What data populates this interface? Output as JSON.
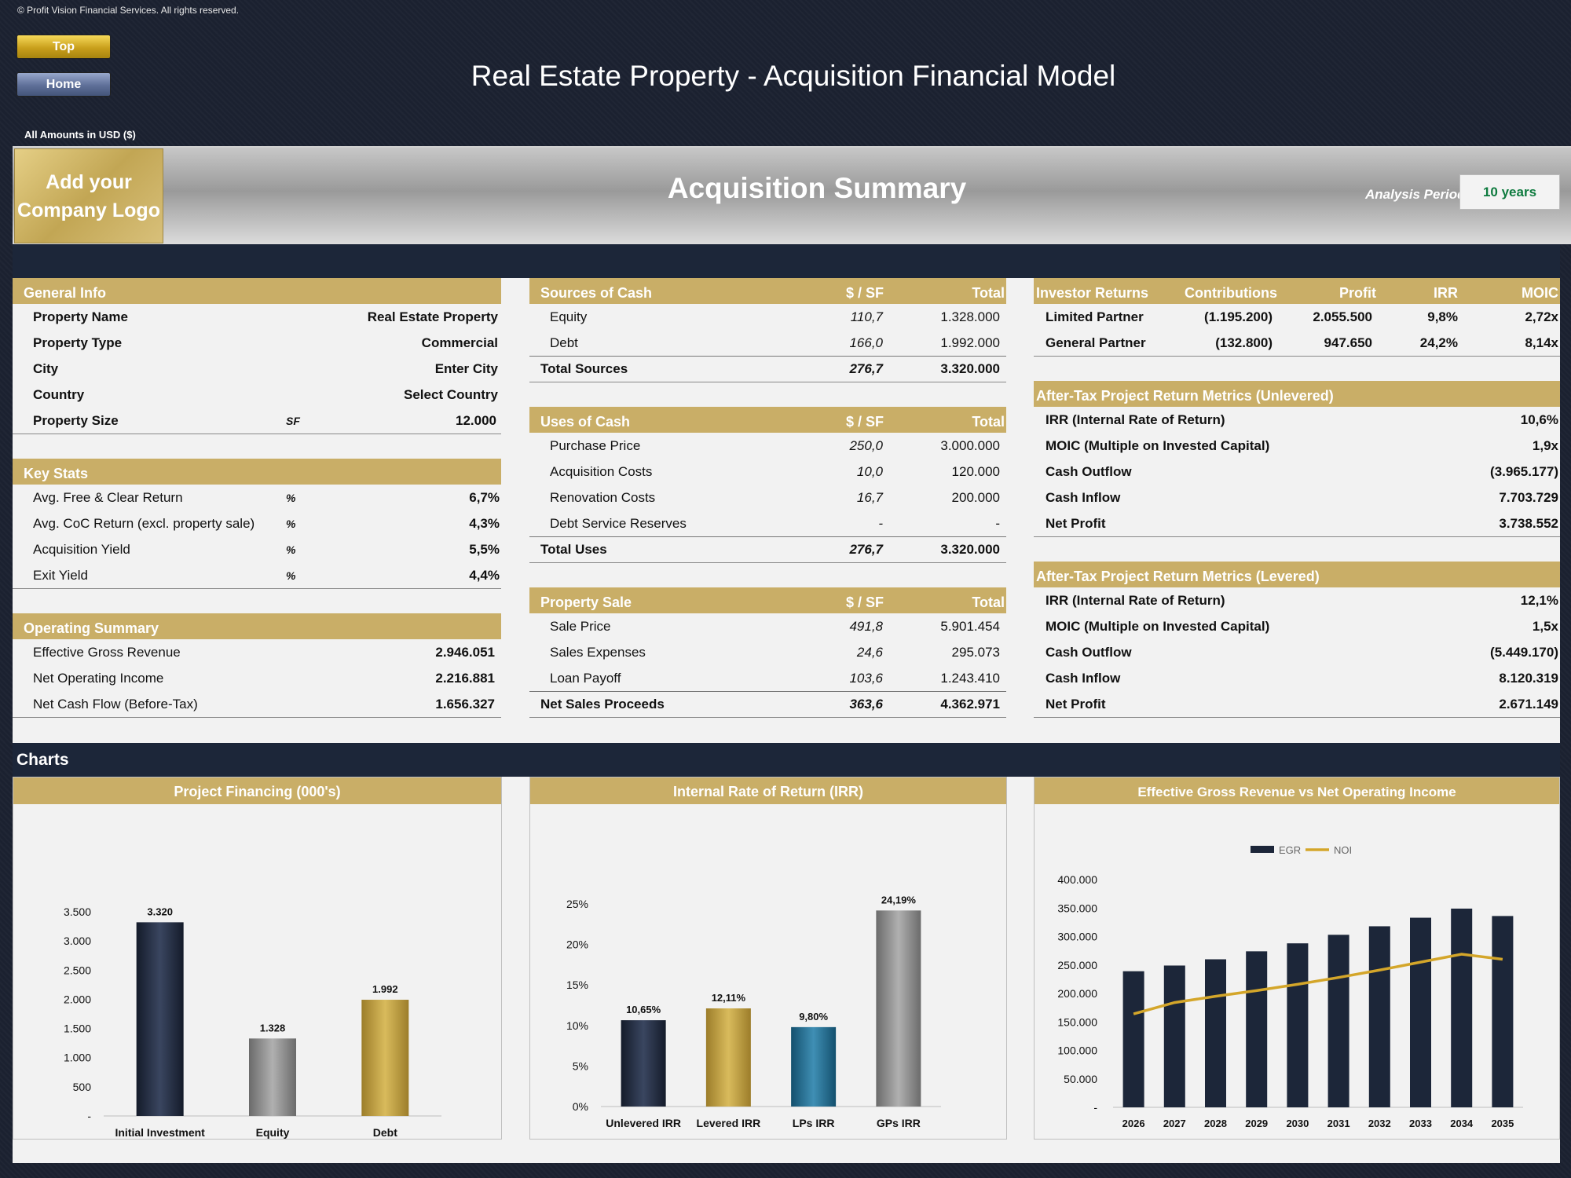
{
  "copyright": "© Profit Vision Financial Services. All rights reserved.",
  "nav": {
    "top_label": "Top",
    "home_label": "Home"
  },
  "title": "Real Estate Property - Acquisition Financial Model",
  "amounts_note": "All Amounts in  USD ($)",
  "logo_text": [
    "Add your",
    "Company Logo"
  ],
  "summary_title": "Acquisition Summary",
  "analysis_period": {
    "label": "Analysis Period",
    "value": "10 years"
  },
  "general_info": {
    "title": "General Info",
    "rows": [
      {
        "label": "Property Name",
        "unit": "",
        "value": "Real Estate Property"
      },
      {
        "label": "Property Type",
        "unit": "",
        "value": "Commercial"
      },
      {
        "label": "City",
        "unit": "",
        "value": "Enter City"
      },
      {
        "label": "Country",
        "unit": "",
        "value": "Select Country"
      },
      {
        "label": "Property Size",
        "unit": "SF",
        "value": "12.000"
      }
    ]
  },
  "key_stats": {
    "title": "Key Stats",
    "rows": [
      {
        "label": "Avg. Free & Clear Return",
        "unit": "%",
        "value": "6,7%"
      },
      {
        "label": "Avg. CoC Return (excl. property sale)",
        "unit": "%",
        "value": "4,3%"
      },
      {
        "label": "Acquisition Yield",
        "unit": "%",
        "value": "5,5%"
      },
      {
        "label": "Exit Yield",
        "unit": "%",
        "value": "4,4%"
      }
    ]
  },
  "operating_summary": {
    "title": "Operating Summary",
    "rows": [
      {
        "label": "Effective Gross Revenue",
        "value": "2.946.051"
      },
      {
        "label": "Net Operating Income",
        "value": "2.216.881"
      },
      {
        "label": "Net Cash Flow (Before-Tax)",
        "value": "1.656.327"
      }
    ]
  },
  "sources_of_cash": {
    "title": "Sources of Cash",
    "col1": "$ / SF",
    "col2": "Total",
    "rows": [
      {
        "label": "Equity",
        "psf": "110,7",
        "total": "1.328.000"
      },
      {
        "label": "Debt",
        "psf": "166,0",
        "total": "1.992.000"
      }
    ],
    "total": {
      "label": "Total Sources",
      "psf": "276,7",
      "total": "3.320.000"
    }
  },
  "uses_of_cash": {
    "title": "Uses of Cash",
    "col1": "$ / SF",
    "col2": "Total",
    "rows": [
      {
        "label": "Purchase Price",
        "psf": "250,0",
        "total": "3.000.000"
      },
      {
        "label": "Acquisition Costs",
        "psf": "10,0",
        "total": "120.000"
      },
      {
        "label": "Renovation Costs",
        "psf": "16,7",
        "total": "200.000"
      },
      {
        "label": "Debt Service Reserves",
        "psf": "-",
        "total": "-"
      }
    ],
    "total": {
      "label": "Total Uses",
      "psf": "276,7",
      "total": "3.320.000"
    }
  },
  "property_sale": {
    "title": "Property Sale",
    "col1": "$ / SF",
    "col2": "Total",
    "rows": [
      {
        "label": "Sale Price",
        "psf": "491,8",
        "total": "5.901.454"
      },
      {
        "label": "Sales Expenses",
        "psf": "24,6",
        "total": "295.073"
      },
      {
        "label": "Loan Payoff",
        "psf": "103,6",
        "total": "1.243.410"
      }
    ],
    "total": {
      "label": "Net Sales Proceeds",
      "psf": "363,6",
      "total": "4.362.971"
    }
  },
  "investor_returns": {
    "title": "Investor Returns",
    "cols": [
      "Contributions",
      "Profit",
      "IRR",
      "MOIC"
    ],
    "rows": [
      {
        "label": "Limited Partner",
        "contributions": "(1.195.200)",
        "profit": "2.055.500",
        "irr": "9,8%",
        "moic": "2,72x"
      },
      {
        "label": "General Partner",
        "contributions": "(132.800)",
        "profit": "947.650",
        "irr": "24,2%",
        "moic": "8,14x"
      }
    ]
  },
  "unlevered": {
    "title": "After-Tax Project Return Metrics (Unlevered)",
    "rows": [
      {
        "label": "IRR (Internal Rate of Return)",
        "value": "10,6%"
      },
      {
        "label": "MOIC (Multiple on Invested Capital)",
        "value": "1,9x"
      },
      {
        "label": "Cash Outflow",
        "value": "(3.965.177)"
      },
      {
        "label": "Cash Inflow",
        "value": "7.703.729"
      },
      {
        "label": "Net Profit",
        "value": "3.738.552"
      }
    ]
  },
  "levered": {
    "title": "After-Tax Project Return Metrics (Levered)",
    "rows": [
      {
        "label": "IRR (Internal Rate of Return)",
        "value": "12,1%"
      },
      {
        "label": "MOIC (Multiple on Invested Capital)",
        "value": "1,5x"
      },
      {
        "label": "Cash Outflow",
        "value": "(5.449.170)"
      },
      {
        "label": "Cash Inflow",
        "value": "8.120.319"
      },
      {
        "label": "Net Profit",
        "value": "2.671.149"
      }
    ]
  },
  "charts_label": "Charts",
  "colors": {
    "navy": "#1c2639",
    "gold": "#c9ae67",
    "grey": "#8c8c8c",
    "teal": "#236b8c",
    "line": "#d4a62a"
  },
  "chart_data": [
    {
      "type": "bar",
      "title": "Project Financing (000's)",
      "categories": [
        "Initial Investment",
        "Equity",
        "Debt"
      ],
      "values": [
        3320,
        1328,
        1992
      ],
      "value_labels": [
        "3.320",
        "1.328",
        "1.992"
      ],
      "bar_colors": [
        "navy",
        "grey",
        "gold"
      ],
      "ylim": [
        0,
        3500
      ],
      "yticks": [
        0,
        500,
        1000,
        1500,
        2000,
        2500,
        3000,
        3500
      ],
      "ytick_labels": [
        "-",
        "500",
        "1.000",
        "1.500",
        "2.000",
        "2.500",
        "3.000",
        "3.500"
      ]
    },
    {
      "type": "bar",
      "title": "Internal Rate of Return (IRR)",
      "categories": [
        "Unlevered IRR",
        "Levered IRR",
        "LPs IRR",
        "GPs IRR"
      ],
      "values": [
        10.65,
        12.11,
        9.8,
        24.19
      ],
      "value_labels": [
        "10,65%",
        "12,11%",
        "9,80%",
        "24,19%"
      ],
      "bar_colors": [
        "navy",
        "gold",
        "teal",
        "grey"
      ],
      "ylim": [
        0,
        25
      ],
      "yticks": [
        0,
        5,
        10,
        15,
        20,
        25
      ],
      "ytick_labels": [
        "0%",
        "5%",
        "10%",
        "15%",
        "20%",
        "25%"
      ]
    },
    {
      "type": "bar",
      "title": "Effective Gross Revenue vs Net Operating Income",
      "categories": [
        "2026",
        "2027",
        "2028",
        "2029",
        "2030",
        "2031",
        "2032",
        "2033",
        "2034",
        "2035"
      ],
      "series": [
        {
          "name": "EGR",
          "type": "bar",
          "values": [
            239000,
            249000,
            260000,
            274000,
            288000,
            303000,
            318000,
            333000,
            349000,
            336000
          ]
        },
        {
          "name": "NOI",
          "type": "line",
          "values": [
            164000,
            184000,
            195000,
            205000,
            216000,
            228000,
            241000,
            255000,
            269000,
            260000
          ]
        }
      ],
      "ylim": [
        0,
        400000
      ],
      "yticks": [
        0,
        50000,
        100000,
        150000,
        200000,
        250000,
        300000,
        350000,
        400000
      ],
      "ytick_labels": [
        "-",
        "50.000",
        "100.000",
        "150.000",
        "200.000",
        "250.000",
        "300.000",
        "350.000",
        "400.000"
      ],
      "legend": "top"
    }
  ]
}
